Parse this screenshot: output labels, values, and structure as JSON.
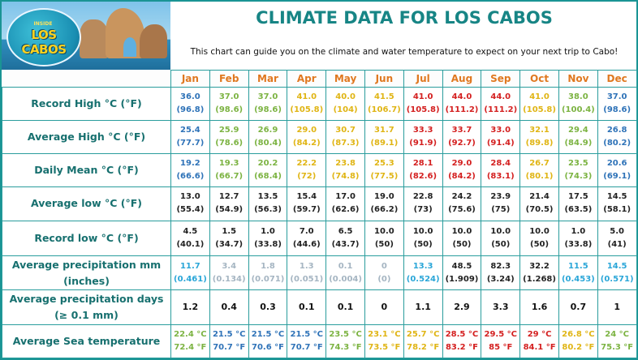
{
  "header": {
    "title": "CLIMATE DATA FOR LOS CABOS",
    "subtitle": "This chart can guide you on the climate and water temperature to expect on your next trip to Cabo!",
    "logo_small": "INSIDE",
    "logo_text": "LOS CABOS"
  },
  "chart_data": {
    "type": "table",
    "title": "CLIMATE DATA FOR LOS CABOS",
    "columns": [
      "Jan",
      "Feb",
      "Mar",
      "Apr",
      "May",
      "Jun",
      "Jul",
      "Aug",
      "Sep",
      "Oct",
      "Nov",
      "Dec"
    ],
    "colors": {
      "blue": "#2f73b8",
      "green": "#7cb342",
      "yellow": "#e0b515",
      "orange": "#e8a020",
      "red": "#d42020",
      "dark": "#222222",
      "cyan": "#2aa6d8",
      "gray": "#a5b5c2",
      "label": "#17706f",
      "month": "#e07820",
      "title": "#178585"
    },
    "rows": [
      {
        "label": "Record High °C (°F)",
        "cells": [
          {
            "a": "36.0",
            "b": "(96.8)",
            "c": "blue"
          },
          {
            "a": "37.0",
            "b": "(98.6)",
            "c": "green"
          },
          {
            "a": "37.0",
            "b": "(98.6)",
            "c": "green"
          },
          {
            "a": "41.0",
            "b": "(105.8)",
            "c": "yellow"
          },
          {
            "a": "40.0",
            "b": "(104)",
            "c": "yellow"
          },
          {
            "a": "41.5",
            "b": "(106.7)",
            "c": "yellow"
          },
          {
            "a": "41.0",
            "b": "(105.8)",
            "c": "red"
          },
          {
            "a": "44.0",
            "b": "(111.2)",
            "c": "red"
          },
          {
            "a": "44.0",
            "b": "(111.2)",
            "c": "red"
          },
          {
            "a": "41.0",
            "b": "(105.8)",
            "c": "yellow"
          },
          {
            "a": "38.0",
            "b": "(100.4)",
            "c": "green"
          },
          {
            "a": "37.0",
            "b": "(98.6)",
            "c": "blue"
          }
        ]
      },
      {
        "label": "Average High °C (°F)",
        "cells": [
          {
            "a": "25.4",
            "b": "(77.7)",
            "c": "blue"
          },
          {
            "a": "25.9",
            "b": "(78.6)",
            "c": "green"
          },
          {
            "a": "26.9",
            "b": "(80.4)",
            "c": "green"
          },
          {
            "a": "29.0",
            "b": "(84.2)",
            "c": "yellow"
          },
          {
            "a": "30.7",
            "b": "(87.3)",
            "c": "yellow"
          },
          {
            "a": "31.7",
            "b": "(89.1)",
            "c": "yellow"
          },
          {
            "a": "33.3",
            "b": "(91.9)",
            "c": "red"
          },
          {
            "a": "33.7",
            "b": "(92.7)",
            "c": "red"
          },
          {
            "a": "33.0",
            "b": "(91.4)",
            "c": "red"
          },
          {
            "a": "32.1",
            "b": "(89.8)",
            "c": "yellow"
          },
          {
            "a": "29.4",
            "b": "(84.9)",
            "c": "green"
          },
          {
            "a": "26.8",
            "b": "(80.2)",
            "c": "blue"
          }
        ]
      },
      {
        "label": "Daily Mean °C (°F)",
        "cells": [
          {
            "a": "19.2",
            "b": "(66.6)",
            "c": "blue"
          },
          {
            "a": "19.3",
            "b": "(66.7)",
            "c": "green"
          },
          {
            "a": "20.2",
            "b": "(68.4)",
            "c": "green"
          },
          {
            "a": "22.2",
            "b": "(72)",
            "c": "yellow"
          },
          {
            "a": "23.8",
            "b": "(74.8)",
            "c": "yellow"
          },
          {
            "a": "25.3",
            "b": "(77.5)",
            "c": "yellow"
          },
          {
            "a": "28.1",
            "b": "(82.6)",
            "c": "red"
          },
          {
            "a": "29.0",
            "b": "(84.2)",
            "c": "red"
          },
          {
            "a": "28.4",
            "b": "(83.1)",
            "c": "red"
          },
          {
            "a": "26.7",
            "b": "(80.1)",
            "c": "yellow"
          },
          {
            "a": "23.5",
            "b": "(74.3)",
            "c": "green"
          },
          {
            "a": "20.6",
            "b": "(69.1)",
            "c": "blue"
          }
        ]
      },
      {
        "label": "Average low °C (°F)",
        "cells": [
          {
            "a": "13.0",
            "b": "(55.4)",
            "c": "dark"
          },
          {
            "a": "12.7",
            "b": "(54.9)",
            "c": "dark"
          },
          {
            "a": "13.5",
            "b": "(56.3)",
            "c": "dark"
          },
          {
            "a": "15.4",
            "b": "(59.7)",
            "c": "dark"
          },
          {
            "a": "17.0",
            "b": "(62.6)",
            "c": "dark"
          },
          {
            "a": "19.0",
            "b": "(66.2)",
            "c": "dark"
          },
          {
            "a": "22.8",
            "b": "(73)",
            "c": "dark"
          },
          {
            "a": "24.2",
            "b": "(75.6)",
            "c": "dark"
          },
          {
            "a": "23.9",
            "b": "(75)",
            "c": "dark"
          },
          {
            "a": "21.4",
            "b": "(70.5)",
            "c": "dark"
          },
          {
            "a": "17.5",
            "b": "(63.5)",
            "c": "dark"
          },
          {
            "a": "14.5",
            "b": "(58.1)",
            "c": "dark"
          }
        ]
      },
      {
        "label": "Record low °C (°F)",
        "cells": [
          {
            "a": "4.5",
            "b": "(40.1)",
            "c": "dark"
          },
          {
            "a": "1.5",
            "b": "(34.7)",
            "c": "dark"
          },
          {
            "a": "1.0",
            "b": "(33.8)",
            "c": "dark"
          },
          {
            "a": "7.0",
            "b": "(44.6)",
            "c": "dark"
          },
          {
            "a": "6.5",
            "b": "(43.7)",
            "c": "dark"
          },
          {
            "a": "10.0",
            "b": "(50)",
            "c": "dark"
          },
          {
            "a": "10.0",
            "b": "(50)",
            "c": "dark"
          },
          {
            "a": "10.0",
            "b": "(50)",
            "c": "dark"
          },
          {
            "a": "10.0",
            "b": "(50)",
            "c": "dark"
          },
          {
            "a": "10.0",
            "b": "(50)",
            "c": "dark"
          },
          {
            "a": "1.0",
            "b": "(33.8)",
            "c": "dark"
          },
          {
            "a": "5.0",
            "b": "(41)",
            "c": "dark"
          }
        ]
      },
      {
        "label": "Average precipitation mm (inches)",
        "cells": [
          {
            "a": "11.7",
            "b": "(0.461)",
            "c": "cyan"
          },
          {
            "a": "3.4",
            "b": "(0.134)",
            "c": "gray"
          },
          {
            "a": "1.8",
            "b": "(0.071)",
            "c": "gray"
          },
          {
            "a": "1.3",
            "b": "(0.051)",
            "c": "gray"
          },
          {
            "a": "0.1",
            "b": "(0.004)",
            "c": "gray"
          },
          {
            "a": "0",
            "b": "(0)",
            "c": "gray"
          },
          {
            "a": "13.3",
            "b": "(0.524)",
            "c": "cyan"
          },
          {
            "a": "48.5",
            "b": "(1.909)",
            "c": "dark"
          },
          {
            "a": "82.3",
            "b": "(3.24)",
            "c": "dark"
          },
          {
            "a": "32.2",
            "b": "(1.268)",
            "c": "dark"
          },
          {
            "a": "11.5",
            "b": "(0.453)",
            "c": "cyan"
          },
          {
            "a": "14.5",
            "b": "(0.571)",
            "c": "cyan"
          }
        ]
      },
      {
        "label": "Average precipitation days (≥ 0.1 mm)",
        "cells": [
          {
            "a": "1.2",
            "c": "dark"
          },
          {
            "a": "0.4",
            "c": "dark"
          },
          {
            "a": "0.3",
            "c": "dark"
          },
          {
            "a": "0.1",
            "c": "dark"
          },
          {
            "a": "0.1",
            "c": "dark"
          },
          {
            "a": "0",
            "c": "dark"
          },
          {
            "a": "1.1",
            "c": "dark"
          },
          {
            "a": "2.9",
            "c": "dark"
          },
          {
            "a": "3.3",
            "c": "dark"
          },
          {
            "a": "1.6",
            "c": "dark"
          },
          {
            "a": "0.7",
            "c": "dark"
          },
          {
            "a": "1",
            "c": "dark"
          }
        ]
      },
      {
        "label": "Average Sea temperature",
        "cells": [
          {
            "a": "22.4 °C",
            "b": "72.4 °F",
            "c": "green"
          },
          {
            "a": "21.5 °C",
            "b": "70.7 °F",
            "c": "blue"
          },
          {
            "a": "21.5 °C",
            "b": "70.6 °F",
            "c": "blue"
          },
          {
            "a": "21.5 °C",
            "b": "70.7 °F",
            "c": "blue"
          },
          {
            "a": "23.5 °C",
            "b": "74.3 °F",
            "c": "green"
          },
          {
            "a": "23.1 °C",
            "b": "73.5 °F",
            "c": "yellow"
          },
          {
            "a": "25.7 °C",
            "b": "78.2 °F",
            "c": "yellow"
          },
          {
            "a": "28.5 °C",
            "b": "83.2 °F",
            "c": "red"
          },
          {
            "a": "29.5 °C",
            "b": "85 °F",
            "c": "red"
          },
          {
            "a": "29 °C",
            "b": "84.1 °F",
            "c": "red"
          },
          {
            "a": "26.8 °C",
            "b": "80.2 °F",
            "c": "yellow"
          },
          {
            "a": "24 °C",
            "b": "75.3 °F",
            "c": "green"
          }
        ]
      }
    ]
  }
}
